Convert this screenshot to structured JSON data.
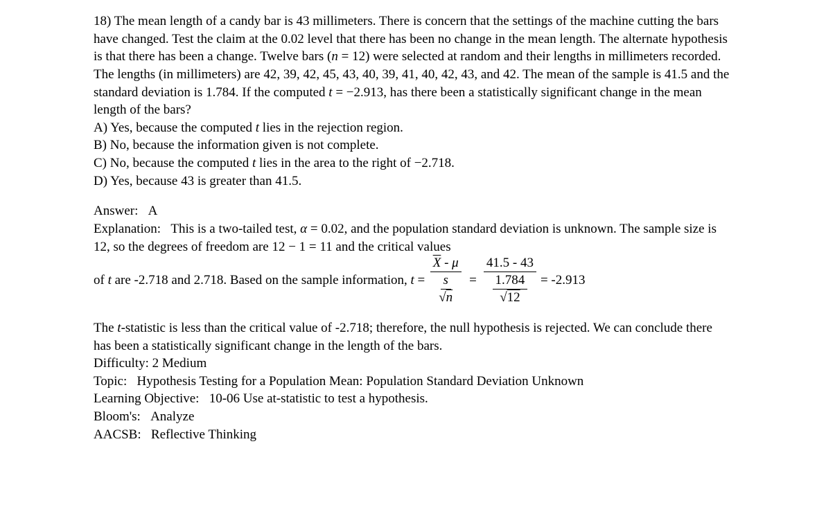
{
  "question": {
    "number": "18)",
    "problem": "The mean length of a candy bar is 43 millimeters. There is concern that the settings of the machine cutting the bars have changed. Test the claim at the 0.02 level that there has been no change in the mean length. The alternate hypothesis is that there has been a change. Twelve bars (n = 12) were selected at random and their lengths in millimeters recorded. The lengths (in millimeters) are 42, 39, 42, 45, 43, 40, 39, 41, 40, 42, 43, and 42. The mean of the sample is 41.5 and the standard deviation is 1.784. If the computed t = −2.913, has there been a statistically significant change in the mean length of the bars?",
    "options": {
      "a": "A) Yes, because the computed t lies in the rejection region.",
      "b": "B) No, because the information given is not complete.",
      "c": "C) No, because the computed t lies in the area to the right of −2.718.",
      "d": "D) Yes, because 43 is greater than 41.5."
    }
  },
  "answer": {
    "label": "Answer:",
    "value": "A"
  },
  "explanation": {
    "label": "Explanation:",
    "text1": "This is a two-tailed test, α = 0.02, and the population standard deviation is unknown. The sample size is 12, so the degrees of freedom are 12 − 1 = 11 and the critical values of t are -2.718 and 2.718. Based on the sample information, t =",
    "formula": {
      "num1_xbar": "X",
      "num1_op": " - ",
      "num1_mu": "μ",
      "den1_s": "s",
      "den1_sqrt_n": "n",
      "num2": "41.5 - 43",
      "den2_top": "1.784",
      "den2_sqrt": "12",
      "result": "= -2.913"
    },
    "conclusion": "The t-statistic is less than the critical value of -2.718; therefore, the null hypothesis is rejected. We can conclude there has been a statistically significant change in the length of the bars."
  },
  "meta": {
    "difficulty_label": "Difficulty:",
    "difficulty_value": "2 Medium",
    "topic_label": "Topic:",
    "topic_value": "Hypothesis Testing for a Population Mean: Population Standard Deviation Unknown",
    "lo_label": "Learning Objective:",
    "lo_value": "10-06 Use at-statistic to test a hypothesis.",
    "bloom_label": "Bloom's:",
    "bloom_value": "Analyze",
    "aacsb_label": "AACSB:",
    "aacsb_value": "Reflective Thinking"
  }
}
